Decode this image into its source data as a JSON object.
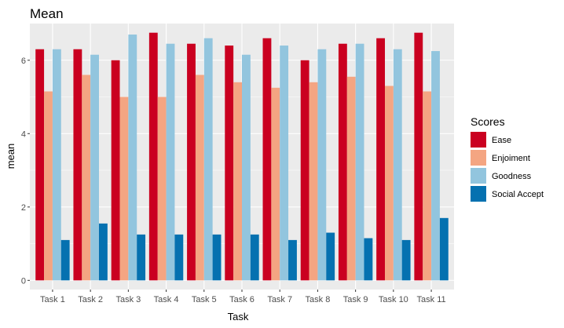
{
  "chart_data": {
    "type": "bar",
    "title": "Mean",
    "xlabel": "Task",
    "ylabel": "mean",
    "ylim": [
      -0.25,
      7.0
    ],
    "yticks": [
      0,
      2,
      4,
      6
    ],
    "grid": true,
    "legend_position": "right",
    "legend_title": "Scores",
    "categories": [
      "Task 1",
      "Task 2",
      "Task 3",
      "Task 4",
      "Task 5",
      "Task 6",
      "Task 7",
      "Task 8",
      "Task 9",
      "Task 10",
      "Task 11"
    ],
    "series": [
      {
        "name": "Ease",
        "color": "#ca0020",
        "values": [
          6.3,
          6.3,
          6.0,
          6.75,
          6.45,
          6.4,
          6.6,
          6.0,
          6.45,
          6.6,
          6.75
        ]
      },
      {
        "name": "Enjoiment",
        "color": "#f4a582",
        "values": [
          5.15,
          5.6,
          5.0,
          5.0,
          5.6,
          5.4,
          5.25,
          5.4,
          5.55,
          5.3,
          5.15
        ]
      },
      {
        "name": "Goodness",
        "color": "#92c5de",
        "values": [
          6.3,
          6.15,
          6.7,
          6.45,
          6.6,
          6.15,
          6.4,
          6.3,
          6.45,
          6.3,
          6.25
        ]
      },
      {
        "name": "Social Accept",
        "color": "#0571b0",
        "values": [
          1.1,
          1.55,
          1.25,
          1.25,
          1.25,
          1.25,
          1.1,
          1.3,
          1.15,
          1.1,
          1.7
        ]
      }
    ],
    "colors": {
      "panel_background": "#ebebeb",
      "grid_line": "#ffffff",
      "tick_text": "#4d4d4d"
    }
  }
}
